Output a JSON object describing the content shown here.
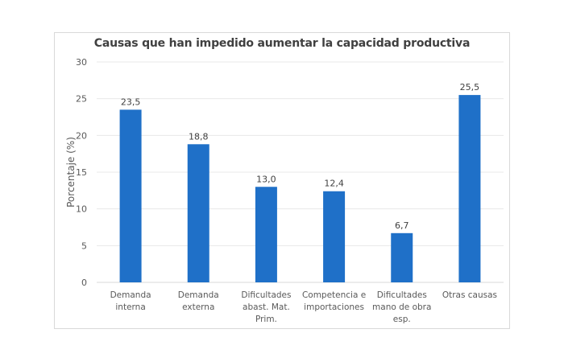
{
  "chart_data": {
    "type": "bar",
    "title": "Causas que han impedido aumentar la capacidad productiva",
    "xlabel": "",
    "ylabel": "Porcentaje (%)",
    "ylim": [
      0,
      30
    ],
    "yticks": [
      0,
      5,
      10,
      15,
      20,
      25,
      30
    ],
    "grid": true,
    "legend": "none",
    "bar_color": "#1f70c8",
    "categories": [
      [
        "Demanda",
        "interna"
      ],
      [
        "Demanda",
        "externa"
      ],
      [
        "Dificultades",
        "abast. Mat.",
        "Prim."
      ],
      [
        "Competencia e",
        "importaciones"
      ],
      [
        "Dificultades",
        "mano de obra",
        "esp."
      ],
      [
        "Otras causas"
      ]
    ],
    "values": [
      23.5,
      18.8,
      13.0,
      12.4,
      6.7,
      25.5
    ],
    "data_labels": [
      "23,5",
      "18,8",
      "13,0",
      "12,4",
      "6,7",
      "25,5"
    ]
  }
}
